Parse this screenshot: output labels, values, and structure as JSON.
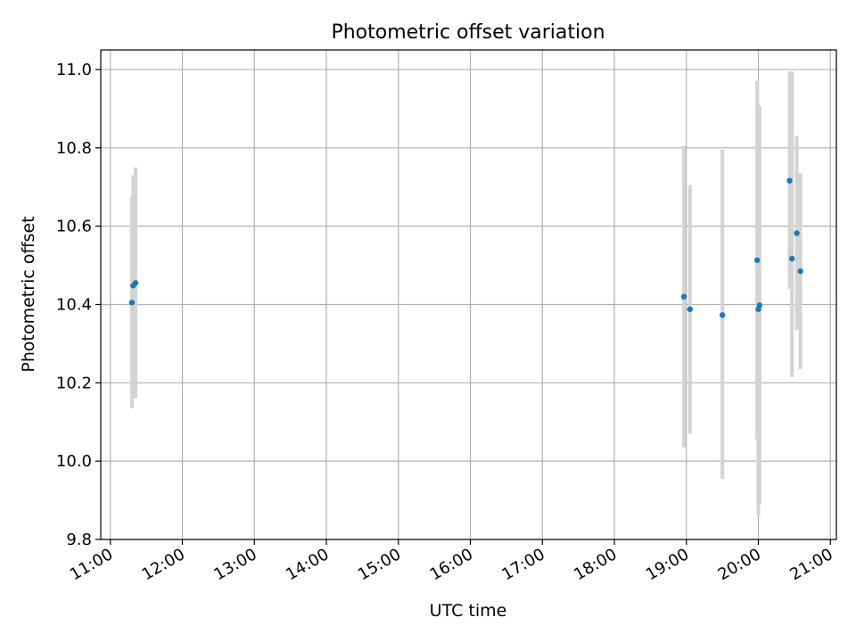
{
  "chart_data": {
    "type": "scatter",
    "title": "Photometric offset variation",
    "xlabel": "UTC time",
    "ylabel": "Photometric offset",
    "x_ticks": [
      "11:00",
      "12:00",
      "13:00",
      "14:00",
      "15:00",
      "16:00",
      "17:00",
      "18:00",
      "19:00",
      "20:00",
      "21:00"
    ],
    "y_ticks": [
      "9.8",
      "10.0",
      "10.2",
      "10.4",
      "10.6",
      "10.8",
      "11.0"
    ],
    "xlim": [
      "10:52",
      "21:05"
    ],
    "ylim": [
      9.8,
      11.05
    ],
    "grid": true,
    "colors": {
      "point": "#1f77b4",
      "errorbar": "#d3d3d3",
      "grid": "#b0b0b0"
    },
    "points": [
      {
        "x": "11:18",
        "y": 10.405,
        "yerr_low": 10.135,
        "yerr_high": 10.675
      },
      {
        "x": "11:19",
        "y": 10.448,
        "yerr_low": 10.165,
        "yerr_high": 10.73
      },
      {
        "x": "11:21",
        "y": 10.455,
        "yerr_low": 10.16,
        "yerr_high": 10.75
      },
      {
        "x": "18:58",
        "y": 10.42,
        "yerr_low": 10.035,
        "yerr_high": 10.805
      },
      {
        "x": "19:03",
        "y": 10.388,
        "yerr_low": 10.07,
        "yerr_high": 10.705
      },
      {
        "x": "19:30",
        "y": 10.373,
        "yerr_low": 9.955,
        "yerr_high": 10.795
      },
      {
        "x": "19:59",
        "y": 10.513,
        "yerr_low": 10.055,
        "yerr_high": 10.97
      },
      {
        "x": "20:00",
        "y": 10.388,
        "yerr_low": 9.86,
        "yerr_high": 10.91
      },
      {
        "x": "20:01",
        "y": 10.398,
        "yerr_low": 9.89,
        "yerr_high": 10.905
      },
      {
        "x": "20:26",
        "y": 10.716,
        "yerr_low": 10.44,
        "yerr_high": 10.995
      },
      {
        "x": "20:28",
        "y": 10.517,
        "yerr_low": 10.215,
        "yerr_high": 10.995
      },
      {
        "x": "20:32",
        "y": 10.582,
        "yerr_low": 10.335,
        "yerr_high": 10.83
      },
      {
        "x": "20:35",
        "y": 10.485,
        "yerr_low": 10.235,
        "yerr_high": 10.735
      }
    ]
  }
}
